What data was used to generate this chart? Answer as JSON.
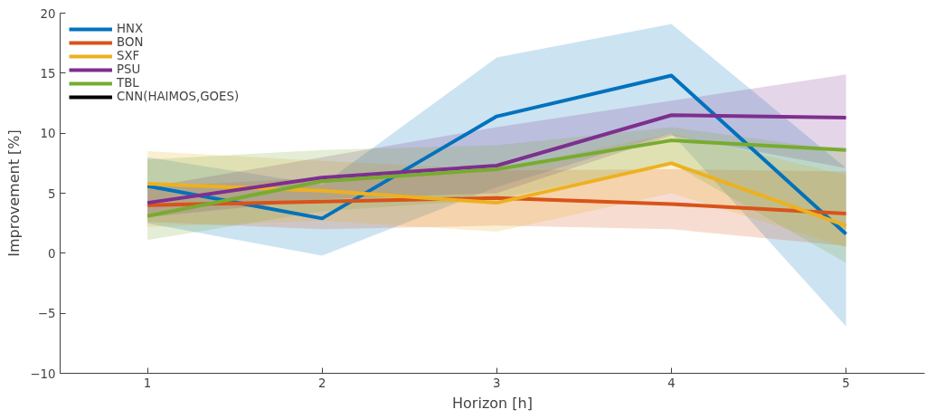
{
  "chart_data": {
    "type": "line",
    "xlabel": "Horizon [h]",
    "ylabel": "Improvement [%]",
    "x": [
      1,
      2,
      3,
      4,
      5
    ],
    "xlim": [
      0.5,
      5.45
    ],
    "ylim": [
      -10,
      20
    ],
    "xticks": [
      1,
      2,
      3,
      4,
      5
    ],
    "yticks": [
      -10,
      -5,
      0,
      5,
      10,
      15,
      20
    ],
    "grid": false,
    "legend": "top left",
    "line_style": "solid",
    "marker": "none",
    "series": [
      {
        "name": "HNX",
        "color": "#0072bd",
        "values": [
          5.6,
          2.9,
          11.4,
          14.8,
          1.6
        ],
        "lower": [
          2.5,
          -0.2,
          5.5,
          10.0,
          -6.1
        ],
        "upper": [
          8.0,
          5.7,
          16.3,
          19.1,
          7.1
        ]
      },
      {
        "name": "BON",
        "color": "#d95319",
        "values": [
          4.0,
          4.3,
          4.6,
          4.1,
          3.3
        ],
        "lower": [
          2.6,
          2.0,
          2.3,
          2.0,
          0.6
        ],
        "upper": [
          5.5,
          6.3,
          6.9,
          7.0,
          6.8
        ]
      },
      {
        "name": "SXF",
        "color": "#edb120",
        "values": [
          5.8,
          5.2,
          4.2,
          7.5,
          2.3
        ],
        "lower": [
          2.2,
          2.7,
          1.8,
          5.0,
          0.5
        ],
        "upper": [
          8.5,
          7.7,
          7.0,
          10.0,
          6.5
        ]
      },
      {
        "name": "PSU",
        "color": "#7e2f8e",
        "values": [
          4.2,
          6.3,
          7.3,
          11.5,
          11.3
        ],
        "lower": [
          3.0,
          4.5,
          5.0,
          9.8,
          7.1
        ],
        "upper": [
          5.5,
          8.0,
          10.5,
          12.7,
          14.9
        ]
      },
      {
        "name": "TBL",
        "color": "#77ac30",
        "values": [
          3.1,
          6.0,
          7.0,
          9.4,
          8.6
        ],
        "lower": [
          1.1,
          3.5,
          4.5,
          7.5,
          -0.8
        ],
        "upper": [
          7.8,
          8.6,
          9.0,
          10.5,
          8.5
        ]
      },
      {
        "name": "CNN(HAIMOS,GOES)",
        "color": "#000000",
        "values": [
          null,
          null,
          null,
          null,
          null
        ]
      }
    ]
  }
}
